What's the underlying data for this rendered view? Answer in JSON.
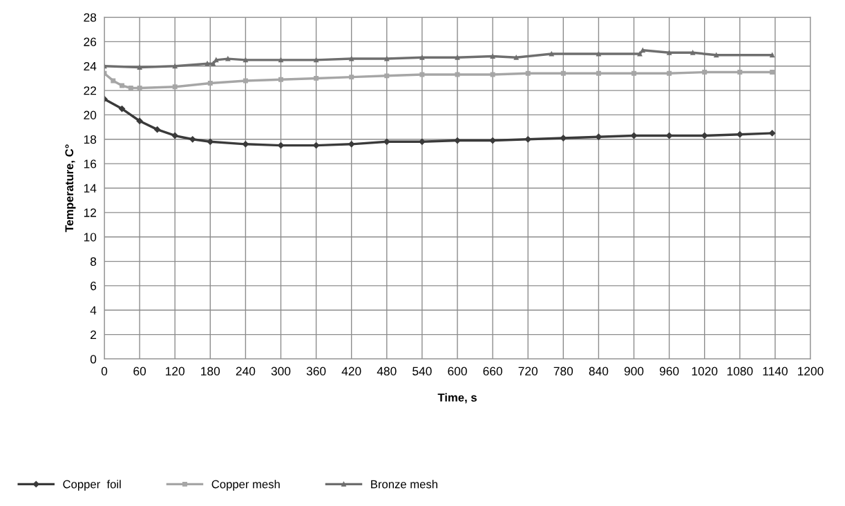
{
  "chart_data": {
    "type": "line",
    "xlabel": "Time, s",
    "ylabel": "Temperature, C°",
    "xlim": [
      0,
      1200
    ],
    "xticks": [
      0,
      60,
      120,
      180,
      240,
      300,
      360,
      420,
      480,
      540,
      600,
      660,
      720,
      780,
      840,
      900,
      960,
      1020,
      1080,
      1140,
      1200
    ],
    "ylim": [
      0,
      28
    ],
    "yticks": [
      0,
      2,
      4,
      6,
      8,
      10,
      12,
      14,
      16,
      18,
      20,
      22,
      24,
      26,
      28
    ],
    "grid": true,
    "legend": "bottom",
    "series": [
      {
        "name": "Copper  foil",
        "color": "#3a3a3a",
        "marker": "diamond",
        "x": [
          0,
          30,
          60,
          90,
          120,
          150,
          180,
          240,
          300,
          360,
          420,
          480,
          540,
          600,
          660,
          720,
          780,
          840,
          900,
          960,
          1020,
          1080,
          1135
        ],
        "values": [
          21.3,
          20.5,
          19.5,
          18.8,
          18.3,
          18.0,
          17.8,
          17.6,
          17.5,
          17.5,
          17.6,
          17.8,
          17.8,
          17.9,
          17.9,
          18.0,
          18.1,
          18.2,
          18.3,
          18.3,
          18.3,
          18.4,
          18.5
        ]
      },
      {
        "name": "Copper mesh",
        "color": "#a6a6a6",
        "marker": "square",
        "x": [
          0,
          15,
          30,
          45,
          60,
          120,
          180,
          240,
          300,
          360,
          420,
          480,
          540,
          600,
          660,
          720,
          780,
          840,
          900,
          960,
          1020,
          1080,
          1135
        ],
        "values": [
          23.4,
          22.8,
          22.4,
          22.2,
          22.2,
          22.3,
          22.6,
          22.8,
          22.9,
          23.0,
          23.1,
          23.2,
          23.3,
          23.3,
          23.3,
          23.4,
          23.4,
          23.4,
          23.4,
          23.4,
          23.5,
          23.5,
          23.5
        ]
      },
      {
        "name": "Bronze mesh",
        "color": "#6e6e6e",
        "marker": "triangle",
        "x": [
          0,
          60,
          120,
          175,
          185,
          190,
          210,
          240,
          300,
          360,
          420,
          480,
          540,
          600,
          660,
          700,
          760,
          840,
          910,
          915,
          960,
          1000,
          1040,
          1135
        ],
        "values": [
          24.0,
          23.9,
          24.0,
          24.2,
          24.2,
          24.5,
          24.6,
          24.5,
          24.5,
          24.5,
          24.6,
          24.6,
          24.7,
          24.7,
          24.8,
          24.7,
          25.0,
          25.0,
          25.0,
          25.3,
          25.1,
          25.1,
          24.9,
          24.9
        ]
      }
    ]
  }
}
